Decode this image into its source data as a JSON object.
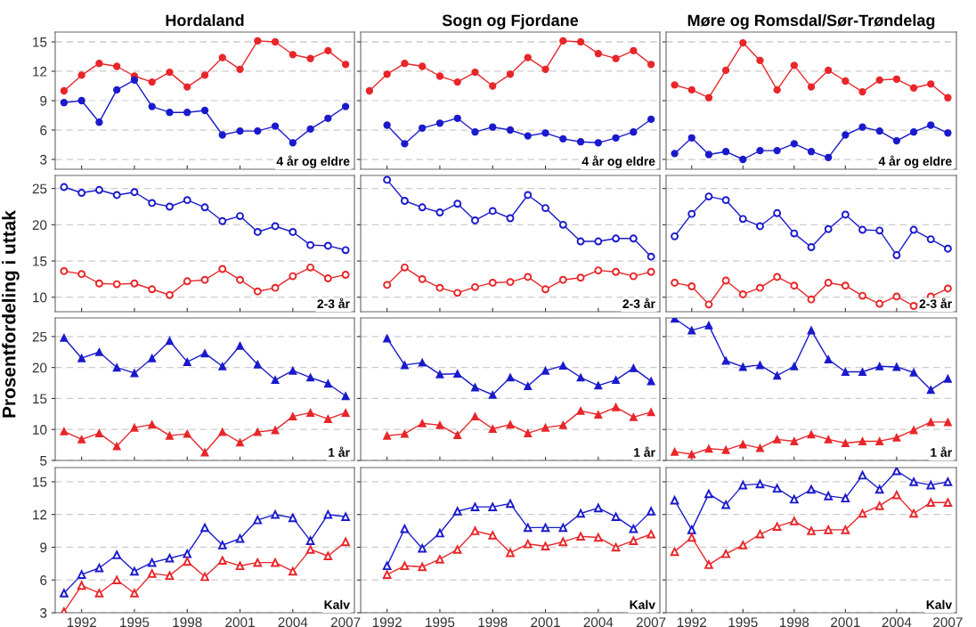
{
  "chart_data": [
    {
      "type": "line",
      "title": "Hordaland",
      "annotations": [
        "4 år og eldre"
      ],
      "marker": "circle",
      "grid": "y",
      "tick_labels": "y",
      "x": [
        1991,
        1992,
        1993,
        1994,
        1995,
        1996,
        1997,
        1998,
        1999,
        2000,
        2001,
        2002,
        2003,
        2004,
        2005,
        2006,
        2007
      ],
      "xlim": [
        1990.5,
        2007.5
      ],
      "xticks": [
        1992,
        1995,
        1998,
        2001,
        2004,
        2007
      ],
      "ylim": [
        2,
        16
      ],
      "yticks": [
        3,
        6,
        9,
        12,
        15
      ],
      "series": [
        {
          "color": "#e8262a",
          "values": [
            10.0,
            11.6,
            12.8,
            12.5,
            11.5,
            10.9,
            11.9,
            10.4,
            11.6,
            13.4,
            12.2,
            15.1,
            15.0,
            13.7,
            13.3,
            14.1,
            12.7
          ]
        },
        {
          "color": "#1a1acc",
          "values": [
            8.8,
            9.0,
            6.8,
            10.1,
            11.1,
            8.4,
            7.8,
            7.8,
            8.0,
            5.5,
            5.9,
            5.9,
            6.4,
            4.7,
            6.1,
            7.2,
            8.4
          ]
        }
      ]
    },
    {
      "type": "line",
      "title": "Sogn og Fjordane",
      "annotations": [
        "4 år og eldre"
      ],
      "marker": "circle",
      "grid": "y",
      "tick_labels": false,
      "x": [
        1991,
        1992,
        1993,
        1994,
        1995,
        1996,
        1997,
        1998,
        1999,
        2000,
        2001,
        2002,
        2003,
        2004,
        2005,
        2006,
        2007
      ],
      "xlim": [
        1990.5,
        2007.5
      ],
      "xticks": [
        1992,
        1995,
        1998,
        2001,
        2004,
        2007
      ],
      "ylim": [
        2,
        16
      ],
      "yticks": [
        3,
        6,
        9,
        12,
        15
      ],
      "series": [
        {
          "color": "#e8262a",
          "values": [
            10.0,
            11.7,
            12.8,
            12.5,
            11.5,
            10.9,
            11.9,
            10.5,
            11.7,
            13.4,
            12.2,
            15.1,
            15.0,
            13.8,
            13.3,
            14.1,
            12.7
          ]
        },
        {
          "color": "#1a1acc",
          "x": [
            1992,
            1993,
            1994,
            1995,
            1996,
            1997,
            1998,
            1999,
            2000,
            2001,
            2002,
            2003,
            2004,
            2005,
            2006,
            2007
          ],
          "values": [
            6.5,
            4.6,
            6.2,
            6.7,
            7.2,
            5.8,
            6.3,
            6.0,
            5.4,
            5.7,
            5.1,
            4.8,
            4.7,
            5.2,
            5.8,
            7.1
          ]
        }
      ]
    },
    {
      "type": "line",
      "title": "Møre og Romsdal/Sør-Trøndelag",
      "annotations": [
        "4 år og eldre"
      ],
      "marker": "circle",
      "grid": "y",
      "tick_labels": false,
      "x": [
        1991,
        1992,
        1993,
        1994,
        1995,
        1996,
        1997,
        1998,
        1999,
        2000,
        2001,
        2002,
        2003,
        2004,
        2005,
        2006,
        2007
      ],
      "xlim": [
        1990.5,
        2007.5
      ],
      "xticks": [
        1992,
        1995,
        1998,
        2001,
        2004,
        2007
      ],
      "ylim": [
        2,
        16
      ],
      "yticks": [
        3,
        6,
        9,
        12,
        15
      ],
      "series": [
        {
          "color": "#e8262a",
          "values": [
            10.6,
            10.1,
            9.3,
            12.1,
            14.9,
            13.1,
            10.1,
            12.6,
            10.4,
            12.1,
            11.0,
            9.9,
            11.1,
            11.2,
            10.3,
            10.7,
            9.3
          ]
        },
        {
          "color": "#1a1acc",
          "values": [
            3.6,
            5.2,
            3.5,
            3.8,
            3.0,
            3.9,
            3.9,
            4.6,
            3.8,
            3.2,
            5.5,
            6.3,
            5.9,
            4.9,
            5.8,
            6.5,
            5.7
          ]
        }
      ]
    },
    {
      "type": "line",
      "ylabel": "Prosentfordeling i uttak",
      "annotations": [
        "2-3 år"
      ],
      "marker": "circle",
      "grid": "y",
      "tick_labels": "y",
      "x": [
        1991,
        1992,
        1993,
        1994,
        1995,
        1996,
        1997,
        1998,
        1999,
        2000,
        2001,
        2002,
        2003,
        2004,
        2005,
        2006,
        2007
      ],
      "xlim": [
        1990.5,
        2007.5
      ],
      "xticks": [
        1992,
        1995,
        1998,
        2001,
        2004,
        2007
      ],
      "ylim": [
        8,
        26.8
      ],
      "yticks": [
        10,
        15,
        20,
        25
      ],
      "series": [
        {
          "color": "#1a1acc",
          "values": [
            25.2,
            24.4,
            24.8,
            24.1,
            24.5,
            23.0,
            22.5,
            23.4,
            22.4,
            20.5,
            21.2,
            19.0,
            19.8,
            19.0,
            17.2,
            17.1,
            16.5
          ]
        },
        {
          "color": "#e8262a",
          "values": [
            13.6,
            13.2,
            11.9,
            11.8,
            11.9,
            11.1,
            10.3,
            12.2,
            12.4,
            13.9,
            12.4,
            10.8,
            11.3,
            12.9,
            14.1,
            12.6,
            13.1
          ]
        }
      ]
    },
    {
      "type": "line",
      "annotations": [
        "2-3 år"
      ],
      "marker": "circle",
      "grid": "y",
      "tick_labels": false,
      "x": [
        1992,
        1993,
        1994,
        1995,
        1996,
        1997,
        1998,
        1999,
        2000,
        2001,
        2002,
        2003,
        2004,
        2005,
        2006,
        2007
      ],
      "xlim": [
        1990.5,
        2007.5
      ],
      "xticks": [
        1992,
        1995,
        1998,
        2001,
        2004,
        2007
      ],
      "ylim": [
        8,
        26.8
      ],
      "yticks": [
        10,
        15,
        20,
        25
      ],
      "series": [
        {
          "color": "#1a1acc",
          "values": [
            26.2,
            23.3,
            22.4,
            21.7,
            22.9,
            20.6,
            21.9,
            20.9,
            24.1,
            22.3,
            20.0,
            17.7,
            17.7,
            18.1,
            18.1,
            15.6
          ]
        },
        {
          "color": "#e8262a",
          "values": [
            11.7,
            14.1,
            12.5,
            11.3,
            10.6,
            11.4,
            12.0,
            12.1,
            12.8,
            11.1,
            12.4,
            12.7,
            13.7,
            13.5,
            12.9,
            13.5
          ]
        }
      ]
    },
    {
      "type": "line",
      "annotations": [
        "2-3 år"
      ],
      "marker": "circle",
      "grid": "y",
      "tick_labels": false,
      "x": [
        1991,
        1992,
        1993,
        1994,
        1995,
        1996,
        1997,
        1998,
        1999,
        2000,
        2001,
        2002,
        2003,
        2004,
        2005,
        2006,
        2007
      ],
      "xlim": [
        1990.5,
        2007.5
      ],
      "xticks": [
        1992,
        1995,
        1998,
        2001,
        2004,
        2007
      ],
      "ylim": [
        8,
        26.8
      ],
      "yticks": [
        10,
        15,
        20,
        25
      ],
      "series": [
        {
          "color": "#1a1acc",
          "values": [
            18.4,
            21.5,
            23.9,
            23.4,
            20.8,
            19.8,
            21.6,
            18.8,
            16.9,
            19.4,
            21.4,
            19.3,
            19.2,
            15.8,
            19.3,
            18.0,
            16.7
          ]
        },
        {
          "color": "#e8262a",
          "values": [
            12.0,
            11.5,
            9.0,
            12.3,
            10.4,
            11.3,
            12.8,
            11.6,
            9.7,
            12.0,
            11.6,
            10.2,
            9.1,
            10.1,
            8.8,
            10.1,
            11.2
          ]
        }
      ]
    },
    {
      "type": "line",
      "annotations": [
        "1 år"
      ],
      "marker": "triangle",
      "grid": "y",
      "tick_labels": "y",
      "x": [
        1991,
        1992,
        1993,
        1994,
        1995,
        1996,
        1997,
        1998,
        1999,
        2000,
        2001,
        2002,
        2003,
        2004,
        2005,
        2006,
        2007
      ],
      "xlim": [
        1990.5,
        2007.5
      ],
      "xticks": [
        1992,
        1995,
        1998,
        2001,
        2004,
        2007
      ],
      "ylim": [
        5,
        28
      ],
      "yticks": [
        5,
        10,
        15,
        20,
        25
      ],
      "series": [
        {
          "color": "#1a1acc",
          "values": [
            24.8,
            21.5,
            22.5,
            20.0,
            19.1,
            21.5,
            24.3,
            20.9,
            22.3,
            20.2,
            23.5,
            20.5,
            18.0,
            19.5,
            18.4,
            17.4,
            15.4
          ]
        },
        {
          "color": "#e8262a",
          "values": [
            9.7,
            8.4,
            9.4,
            7.3,
            10.3,
            10.8,
            9.0,
            9.3,
            6.3,
            9.6,
            7.9,
            9.6,
            9.9,
            12.1,
            12.7,
            11.7,
            12.7
          ]
        }
      ]
    },
    {
      "type": "line",
      "annotations": [
        "1 år"
      ],
      "marker": "triangle",
      "grid": "y",
      "tick_labels": false,
      "x": [
        1992,
        1993,
        1994,
        1995,
        1996,
        1997,
        1998,
        1999,
        2000,
        2001,
        2002,
        2003,
        2004,
        2005,
        2006,
        2007
      ],
      "xlim": [
        1990.5,
        2007.5
      ],
      "xticks": [
        1992,
        1995,
        1998,
        2001,
        2004,
        2007
      ],
      "ylim": [
        5,
        28
      ],
      "yticks": [
        5,
        10,
        15,
        20,
        25
      ],
      "series": [
        {
          "color": "#1a1acc",
          "values": [
            24.7,
            20.4,
            20.8,
            18.9,
            19.0,
            16.8,
            15.6,
            18.4,
            17.0,
            19.5,
            20.3,
            18.4,
            17.1,
            18.0,
            19.9,
            17.8
          ]
        },
        {
          "color": "#e8262a",
          "values": [
            9.0,
            9.3,
            11.0,
            10.7,
            9.1,
            12.1,
            10.1,
            10.8,
            9.4,
            10.3,
            10.7,
            13.0,
            12.4,
            13.6,
            12.0,
            12.8
          ]
        }
      ]
    },
    {
      "type": "line",
      "annotations": [
        "1 år"
      ],
      "marker": "triangle",
      "grid": "y",
      "tick_labels": false,
      "x": [
        1991,
        1992,
        1993,
        1994,
        1995,
        1996,
        1997,
        1998,
        1999,
        2000,
        2001,
        2002,
        2003,
        2004,
        2005,
        2006,
        2007
      ],
      "xlim": [
        1990.5,
        2007.5
      ],
      "xticks": [
        1992,
        1995,
        1998,
        2001,
        2004,
        2007
      ],
      "ylim": [
        5,
        28
      ],
      "yticks": [
        5,
        10,
        15,
        20,
        25
      ],
      "series": [
        {
          "color": "#1a1acc",
          "values": [
            27.9,
            26.0,
            26.8,
            21.1,
            20.1,
            20.4,
            18.7,
            20.2,
            26.0,
            21.3,
            19.3,
            19.3,
            20.2,
            20.1,
            19.2,
            16.4,
            18.2
          ]
        },
        {
          "color": "#e8262a",
          "values": [
            6.4,
            6.0,
            6.9,
            6.7,
            7.6,
            7.0,
            8.4,
            8.1,
            9.2,
            8.4,
            7.8,
            8.1,
            8.1,
            8.7,
            9.9,
            11.2,
            11.2
          ]
        }
      ]
    },
    {
      "type": "line",
      "annotations": [
        "Kalv"
      ],
      "marker": "triangle",
      "grid": "y",
      "x": [
        1991,
        1992,
        1993,
        1994,
        1995,
        1996,
        1997,
        1998,
        1999,
        2000,
        2001,
        2002,
        2003,
        2004,
        2005,
        2006,
        2007
      ],
      "xlim": [
        1990.5,
        2007.5
      ],
      "xticks": [
        1992,
        1995,
        1998,
        2001,
        2004,
        2007
      ],
      "ylim": [
        3,
        16.3
      ],
      "yticks": [
        3,
        6,
        9,
        12,
        15
      ],
      "series": [
        {
          "color": "#1a1acc",
          "values": [
            4.8,
            6.5,
            7.1,
            8.3,
            6.8,
            7.6,
            8.0,
            8.4,
            10.8,
            9.2,
            9.8,
            11.5,
            12.0,
            11.7,
            9.6,
            12.0,
            11.8
          ]
        },
        {
          "color": "#e8262a",
          "values": [
            3.1,
            5.5,
            4.8,
            6.0,
            4.8,
            6.6,
            6.4,
            7.7,
            6.3,
            7.8,
            7.3,
            7.6,
            7.6,
            6.8,
            8.8,
            8.2,
            9.5
          ]
        }
      ]
    },
    {
      "type": "line",
      "annotations": [
        "Kalv"
      ],
      "marker": "triangle",
      "grid": "y",
      "tick_labels": "x",
      "x": [
        1992,
        1993,
        1994,
        1995,
        1996,
        1997,
        1998,
        1999,
        2000,
        2001,
        2002,
        2003,
        2004,
        2005,
        2006,
        2007
      ],
      "xlim": [
        1990.5,
        2007.5
      ],
      "xticks": [
        1992,
        1995,
        1998,
        2001,
        2004,
        2007
      ],
      "ylim": [
        3,
        16.3
      ],
      "yticks": [
        3,
        6,
        9,
        12,
        15
      ],
      "series": [
        {
          "color": "#1a1acc",
          "values": [
            7.3,
            10.7,
            8.9,
            10.3,
            12.3,
            12.7,
            12.7,
            13.0,
            10.8,
            10.8,
            10.8,
            12.1,
            12.6,
            11.8,
            10.7,
            12.3
          ]
        },
        {
          "color": "#e8262a",
          "values": [
            6.5,
            7.3,
            7.2,
            7.9,
            8.8,
            10.5,
            10.1,
            8.5,
            9.3,
            9.1,
            9.5,
            10.0,
            9.9,
            9.0,
            9.6,
            10.2
          ]
        }
      ]
    },
    {
      "type": "line",
      "annotations": [
        "Kalv"
      ],
      "marker": "triangle",
      "grid": "y",
      "tick_labels": "x",
      "x": [
        1991,
        1992,
        1993,
        1994,
        1995,
        1996,
        1997,
        1998,
        1999,
        2000,
        2001,
        2002,
        2003,
        2004,
        2005,
        2006,
        2007
      ],
      "xlim": [
        1990.5,
        2007.5
      ],
      "xticks": [
        1992,
        1995,
        1998,
        2001,
        2004,
        2007
      ],
      "ylim": [
        3,
        16.3
      ],
      "yticks": [
        3,
        6,
        9,
        12,
        15
      ],
      "series": [
        {
          "color": "#1a1acc",
          "values": [
            13.3,
            10.6,
            13.9,
            12.9,
            14.7,
            14.8,
            14.4,
            13.4,
            14.3,
            13.7,
            13.5,
            15.6,
            14.3,
            16.0,
            15.0,
            14.7,
            15.0
          ]
        },
        {
          "color": "#e8262a",
          "values": [
            8.6,
            9.9,
            7.4,
            8.4,
            9.2,
            10.2,
            10.9,
            11.4,
            10.5,
            10.6,
            10.6,
            12.1,
            12.8,
            13.8,
            12.1,
            13.1,
            13.1
          ]
        }
      ]
    }
  ]
}
